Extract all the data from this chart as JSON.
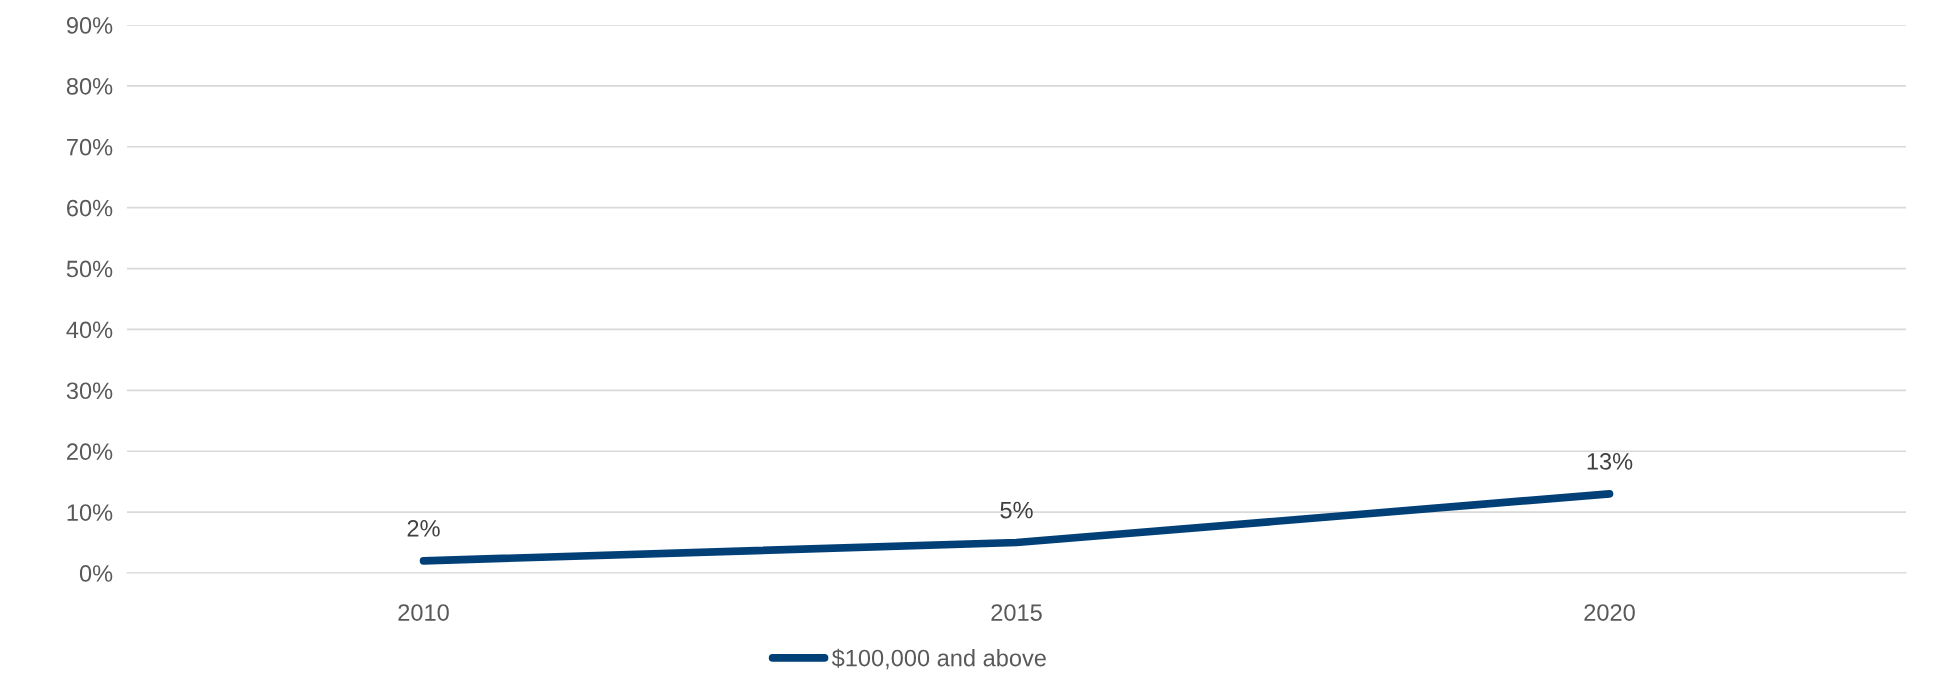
{
  "chart_data": {
    "type": "line",
    "categories": [
      "2010",
      "2015",
      "2020"
    ],
    "series": [
      {
        "name": "$100,000 and above",
        "color": "#004077",
        "values": [
          2,
          5,
          13
        ],
        "value_labels": [
          "2%",
          "5%",
          "13%"
        ]
      }
    ],
    "ylim": [
      0,
      90
    ],
    "yticks": [
      {
        "value": 0,
        "label": "0%"
      },
      {
        "value": 10,
        "label": "10%"
      },
      {
        "value": 20,
        "label": "20%"
      },
      {
        "value": 30,
        "label": "30%"
      },
      {
        "value": 40,
        "label": "40%"
      },
      {
        "value": 50,
        "label": "50%"
      },
      {
        "value": 60,
        "label": "60%"
      },
      {
        "value": 70,
        "label": "70%"
      },
      {
        "value": 80,
        "label": "80%"
      },
      {
        "value": 90,
        "label": "90%"
      }
    ],
    "grid": "y",
    "legend": "bottom",
    "marker": "none",
    "line_style": "solid"
  }
}
